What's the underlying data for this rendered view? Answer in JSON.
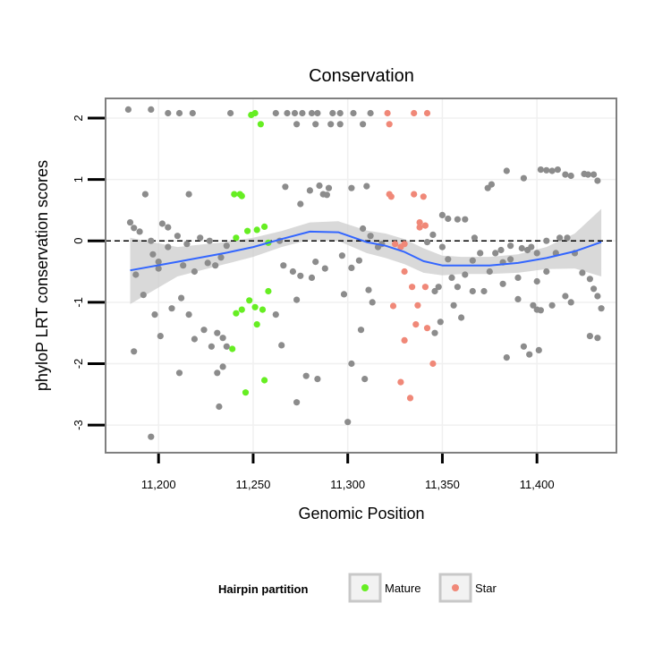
{
  "chart_data": {
    "type": "scatter",
    "title": "Conservation",
    "xlabel": "Genomic Position",
    "ylabel": "phyloP LRT conservation scores",
    "xlim": [
      11172,
      11442
    ],
    "ylim": [
      -3.45,
      2.32
    ],
    "x_ticks": [
      11200,
      11250,
      11300,
      11350,
      11400
    ],
    "x_tick_labels": [
      "11,200",
      "11,250",
      "11,300",
      "11,350",
      "11,400"
    ],
    "y_ticks": [
      -3,
      -2,
      -1,
      0,
      1,
      2
    ],
    "y_tick_labels": [
      "-3",
      "-2",
      "-1",
      "0",
      "1",
      "2"
    ],
    "reference_line_y": 0,
    "grid": true,
    "legend": {
      "title": "Hairpin partition",
      "position": "bottom",
      "entries": [
        {
          "name": "Mature",
          "color": "#66ee22"
        },
        {
          "name": "Star",
          "color": "#f08878"
        }
      ]
    },
    "colors": {
      "other": "#8c8c8c",
      "Mature": "#66ee22",
      "Star": "#f08878",
      "smooth": "#3366ff",
      "band": "#cccccc"
    },
    "smooth": {
      "x": [
        11185,
        11210,
        11235,
        11250,
        11265,
        11280,
        11295,
        11310,
        11320,
        11330,
        11340,
        11350,
        11360,
        11375,
        11390,
        11405,
        11420,
        11434
      ],
      "y": [
        -0.48,
        -0.34,
        -0.2,
        -0.1,
        0.03,
        0.15,
        0.14,
        -0.02,
        -0.08,
        -0.18,
        -0.33,
        -0.4,
        -0.4,
        -0.4,
        -0.36,
        -0.28,
        -0.17,
        -0.02
      ],
      "lower": [
        -1.03,
        -0.58,
        -0.38,
        -0.26,
        -0.1,
        0.02,
        0.0,
        -0.2,
        -0.28,
        -0.38,
        -0.52,
        -0.56,
        -0.54,
        -0.54,
        -0.52,
        -0.46,
        -0.45,
        -0.58
      ],
      "upper": [
        0.05,
        -0.1,
        -0.02,
        0.05,
        0.16,
        0.3,
        0.32,
        0.17,
        0.12,
        0.03,
        -0.12,
        -0.24,
        -0.26,
        -0.26,
        -0.22,
        -0.1,
        0.12,
        0.52
      ]
    },
    "series": [
      {
        "name": "Mature",
        "points": [
          [
            11249,
            2.05
          ],
          [
            11251,
            2.08
          ],
          [
            11254,
            1.9
          ],
          [
            11240,
            0.76
          ],
          [
            11243,
            0.76
          ],
          [
            11244,
            0.73
          ],
          [
            11241,
            0.05
          ],
          [
            11247,
            0.16
          ],
          [
            11252,
            0.18
          ],
          [
            11256,
            0.23
          ],
          [
            11258,
            -0.03
          ],
          [
            11258,
            -0.82
          ],
          [
            11248,
            -0.97
          ],
          [
            11251,
            -1.08
          ],
          [
            11244,
            -1.12
          ],
          [
            11241,
            -1.18
          ],
          [
            11255,
            -1.12
          ],
          [
            11252,
            -1.36
          ],
          [
            11239,
            -1.76
          ],
          [
            11256,
            -2.27
          ],
          [
            11246,
            -2.47
          ]
        ]
      },
      {
        "name": "Star",
        "points": [
          [
            11321,
            2.08
          ],
          [
            11322,
            1.9
          ],
          [
            11335,
            2.08
          ],
          [
            11342,
            2.08
          ],
          [
            11322,
            0.76
          ],
          [
            11323,
            0.72
          ],
          [
            11335,
            0.76
          ],
          [
            11340,
            0.72
          ],
          [
            11338,
            0.3
          ],
          [
            11341,
            0.25
          ],
          [
            11338,
            0.22
          ],
          [
            11325,
            -0.05
          ],
          [
            11330,
            -0.05
          ],
          [
            11328,
            -0.1
          ],
          [
            11330,
            -0.5
          ],
          [
            11334,
            -0.75
          ],
          [
            11341,
            -0.75
          ],
          [
            11324,
            -1.06
          ],
          [
            11337,
            -1.05
          ],
          [
            11336,
            -1.36
          ],
          [
            11342,
            -1.42
          ],
          [
            11330,
            -1.62
          ],
          [
            11345,
            -2.0
          ],
          [
            11328,
            -2.3
          ],
          [
            11333,
            -2.56
          ]
        ]
      },
      {
        "name": "",
        "points": [
          [
            11184,
            2.14
          ],
          [
            11196,
            2.14
          ],
          [
            11205,
            2.08
          ],
          [
            11211,
            2.08
          ],
          [
            11218,
            2.08
          ],
          [
            11238,
            2.08
          ],
          [
            11262,
            2.08
          ],
          [
            11268,
            2.08
          ],
          [
            11272,
            2.08
          ],
          [
            11276,
            2.08
          ],
          [
            11281,
            2.08
          ],
          [
            11284,
            2.08
          ],
          [
            11292,
            2.08
          ],
          [
            11296,
            2.08
          ],
          [
            11303,
            2.08
          ],
          [
            11312,
            2.08
          ],
          [
            11273,
            1.9
          ],
          [
            11283,
            1.9
          ],
          [
            11291,
            1.9
          ],
          [
            11296,
            1.9
          ],
          [
            11308,
            1.9
          ],
          [
            11193,
            0.76
          ],
          [
            11216,
            0.76
          ],
          [
            11267,
            0.88
          ],
          [
            11280,
            0.82
          ],
          [
            11285,
            0.9
          ],
          [
            11287,
            0.76
          ],
          [
            11290,
            0.86
          ],
          [
            11302,
            0.86
          ],
          [
            11310,
            0.89
          ],
          [
            11275,
            0.6
          ],
          [
            11289,
            0.75
          ],
          [
            11384,
            1.14
          ],
          [
            11393,
            1.02
          ],
          [
            11374,
            0.86
          ],
          [
            11376,
            0.92
          ],
          [
            11402,
            1.16
          ],
          [
            11405,
            1.15
          ],
          [
            11408,
            1.14
          ],
          [
            11411,
            1.16
          ],
          [
            11415,
            1.08
          ],
          [
            11418,
            1.06
          ],
          [
            11425,
            1.09
          ],
          [
            11427,
            1.08
          ],
          [
            11430,
            1.08
          ],
          [
            11432,
            0.98
          ],
          [
            11185,
            0.3
          ],
          [
            11187,
            0.21
          ],
          [
            11190,
            0.15
          ],
          [
            11196,
            0.0
          ],
          [
            11197,
            -0.22
          ],
          [
            11200,
            -0.34
          ],
          [
            11202,
            0.28
          ],
          [
            11205,
            0.22
          ],
          [
            11210,
            0.08
          ],
          [
            11215,
            -0.05
          ],
          [
            11222,
            0.05
          ],
          [
            11227,
            0.0
          ],
          [
            11230,
            -0.4
          ],
          [
            11233,
            -0.27
          ],
          [
            11236,
            -0.08
          ],
          [
            11200,
            -0.45
          ],
          [
            11205,
            -0.1
          ],
          [
            11213,
            -0.4
          ],
          [
            11219,
            -0.5
          ],
          [
            11226,
            -0.36
          ],
          [
            11264,
            0.0
          ],
          [
            11266,
            -0.4
          ],
          [
            11271,
            -0.5
          ],
          [
            11275,
            -0.57
          ],
          [
            11283,
            -0.34
          ],
          [
            11288,
            -0.45
          ],
          [
            11297,
            -0.24
          ],
          [
            11302,
            -0.44
          ],
          [
            11306,
            -0.32
          ],
          [
            11308,
            0.2
          ],
          [
            11312,
            0.08
          ],
          [
            11316,
            -0.1
          ],
          [
            11318,
            -0.05
          ],
          [
            11188,
            -0.55
          ],
          [
            11192,
            -0.88
          ],
          [
            11198,
            -1.2
          ],
          [
            11201,
            -1.55
          ],
          [
            11207,
            -1.1
          ],
          [
            11212,
            -0.93
          ],
          [
            11216,
            -1.2
          ],
          [
            11219,
            -1.6
          ],
          [
            11224,
            -1.45
          ],
          [
            11228,
            -1.72
          ],
          [
            11231,
            -1.5
          ],
          [
            11234,
            -1.58
          ],
          [
            11236,
            -1.72
          ],
          [
            11231,
            -2.15
          ],
          [
            11234,
            -2.05
          ],
          [
            11232,
            -2.7
          ],
          [
            11187,
            -1.8
          ],
          [
            11196,
            -3.19
          ],
          [
            11211,
            -2.15
          ],
          [
            11273,
            -0.96
          ],
          [
            11281,
            -0.6
          ],
          [
            11298,
            -0.87
          ],
          [
            11311,
            -0.8
          ],
          [
            11313,
            -1.0
          ],
          [
            11307,
            -1.45
          ],
          [
            11302,
            -2.0
          ],
          [
            11300,
            -2.95
          ],
          [
            11309,
            -2.25
          ],
          [
            11278,
            -2.2
          ],
          [
            11284,
            -2.25
          ],
          [
            11273,
            -2.63
          ],
          [
            11265,
            -1.7
          ],
          [
            11262,
            -1.2
          ],
          [
            11342,
            -0.02
          ],
          [
            11345,
            0.1
          ],
          [
            11350,
            -0.1
          ],
          [
            11353,
            -0.3
          ],
          [
            11355,
            -0.6
          ],
          [
            11358,
            -0.75
          ],
          [
            11362,
            -0.55
          ],
          [
            11366,
            -0.32
          ],
          [
            11370,
            -0.2
          ],
          [
            11375,
            -0.5
          ],
          [
            11378,
            -0.2
          ],
          [
            11382,
            -0.35
          ],
          [
            11386,
            -0.3
          ],
          [
            11390,
            -0.6
          ],
          [
            11395,
            -0.15
          ],
          [
            11400,
            -0.2
          ],
          [
            11405,
            0.0
          ],
          [
            11410,
            -0.2
          ],
          [
            11412,
            0.05
          ],
          [
            11416,
            0.05
          ],
          [
            11420,
            -0.2
          ],
          [
            11424,
            -0.52
          ],
          [
            11428,
            -0.62
          ],
          [
            11430,
            -0.78
          ],
          [
            11432,
            -0.9
          ],
          [
            11434,
            -1.1
          ],
          [
            11350,
            0.42
          ],
          [
            11353,
            0.36
          ],
          [
            11358,
            0.35
          ],
          [
            11362,
            0.35
          ],
          [
            11367,
            0.05
          ],
          [
            11381,
            -0.15
          ],
          [
            11386,
            -0.08
          ],
          [
            11392,
            -0.12
          ],
          [
            11397,
            -0.1
          ],
          [
            11400,
            -0.66
          ],
          [
            11405,
            -0.5
          ],
          [
            11408,
            -1.05
          ],
          [
            11415,
            -0.9
          ],
          [
            11418,
            -1.0
          ],
          [
            11346,
            -0.82
          ],
          [
            11348,
            -0.75
          ],
          [
            11356,
            -1.05
          ],
          [
            11360,
            -1.25
          ],
          [
            11366,
            -0.82
          ],
          [
            11372,
            -0.82
          ],
          [
            11382,
            -0.7
          ],
          [
            11390,
            -0.95
          ],
          [
            11398,
            -1.05
          ],
          [
            11400,
            -1.12
          ],
          [
            11402,
            -1.13
          ],
          [
            11346,
            -1.5
          ],
          [
            11349,
            -1.32
          ],
          [
            11384,
            -1.9
          ],
          [
            11393,
            -1.72
          ],
          [
            11396,
            -1.85
          ],
          [
            11401,
            -1.78
          ],
          [
            11428,
            -1.55
          ],
          [
            11432,
            -1.58
          ]
        ]
      }
    ]
  }
}
